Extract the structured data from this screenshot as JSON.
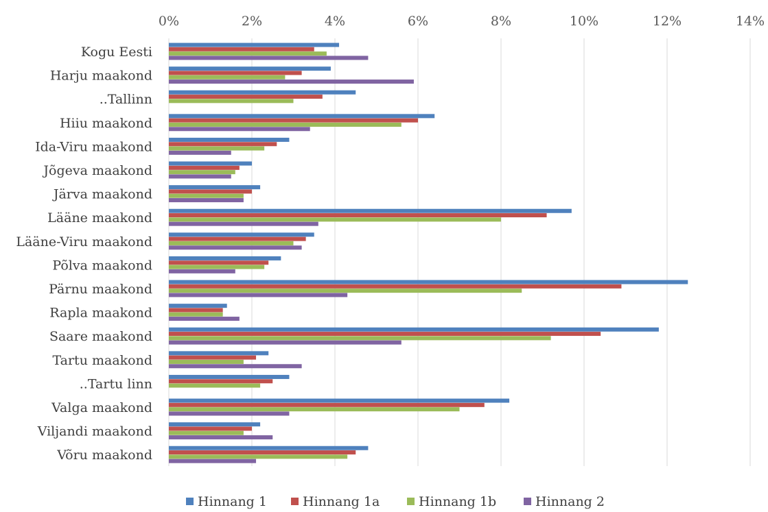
{
  "chart_data": {
    "type": "bar",
    "orientation": "horizontal",
    "title": "",
    "xlabel": "",
    "ylabel": "",
    "xlim": [
      0,
      14
    ],
    "x_ticks": [
      "0%",
      "2%",
      "4%",
      "6%",
      "8%",
      "10%",
      "12%",
      "14%"
    ],
    "grid": true,
    "legend_position": "bottom",
    "categories": [
      "Kogu Eesti",
      "Harju maakond",
      "..Tallinn",
      "Hiiu maakond",
      "Ida-Viru maakond",
      "Jõgeva maakond",
      "Järva maakond",
      "Lääne maakond",
      "Lääne-Viru maakond",
      "Põlva maakond",
      "Pärnu maakond",
      "Rapla maakond",
      "Saare maakond",
      "Tartu maakond",
      "..Tartu linn",
      "Valga maakond",
      "Viljandi maakond",
      "Võru maakond"
    ],
    "series": [
      {
        "name": "Hinnang 1",
        "color": "#4f81bd",
        "values": [
          4.1,
          3.9,
          4.5,
          6.4,
          2.9,
          2.0,
          2.2,
          9.7,
          3.5,
          2.7,
          12.5,
          1.4,
          11.8,
          2.4,
          2.9,
          8.2,
          2.2,
          4.8
        ]
      },
      {
        "name": "Hinnang 1a",
        "color": "#c0504d",
        "values": [
          3.5,
          3.2,
          3.7,
          6.0,
          2.6,
          1.7,
          2.0,
          9.1,
          3.3,
          2.4,
          10.9,
          1.3,
          10.4,
          2.1,
          2.5,
          7.6,
          2.0,
          4.5
        ]
      },
      {
        "name": "Hinnang 1b",
        "color": "#9bbb59",
        "values": [
          3.8,
          2.8,
          3.0,
          5.6,
          2.3,
          1.6,
          1.8,
          8.0,
          3.0,
          2.3,
          8.5,
          1.3,
          9.2,
          1.8,
          2.2,
          7.0,
          1.8,
          4.3
        ]
      },
      {
        "name": "Hinnang 2",
        "color": "#8064a2",
        "values": [
          4.8,
          5.9,
          null,
          3.4,
          1.5,
          1.5,
          1.8,
          3.6,
          3.2,
          1.6,
          4.3,
          1.7,
          5.6,
          3.2,
          null,
          2.9,
          2.5,
          2.1
        ]
      }
    ]
  }
}
